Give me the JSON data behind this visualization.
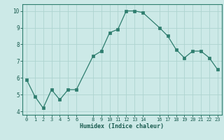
{
  "x": [
    0,
    1,
    2,
    3,
    4,
    5,
    6,
    8,
    9,
    10,
    11,
    12,
    13,
    14,
    16,
    17,
    18,
    19,
    20,
    21,
    22,
    23
  ],
  "y": [
    5.9,
    4.9,
    4.2,
    5.3,
    4.7,
    5.3,
    5.3,
    7.3,
    7.6,
    8.7,
    8.9,
    10.0,
    10.0,
    9.9,
    9.0,
    8.5,
    7.7,
    7.2,
    7.6,
    7.6,
    7.2,
    6.5
  ],
  "xticks": [
    0,
    1,
    2,
    3,
    4,
    5,
    6,
    8,
    9,
    10,
    11,
    12,
    13,
    14,
    16,
    17,
    18,
    19,
    20,
    21,
    22,
    23
  ],
  "yticks": [
    4,
    5,
    6,
    7,
    8,
    9,
    10
  ],
  "ylim": [
    3.8,
    10.4
  ],
  "xlim": [
    -0.5,
    23.5
  ],
  "xlabel": "Humidex (Indice chaleur)",
  "line_color": "#2e7d6e",
  "marker_color": "#2e7d6e",
  "bg_color": "#cce9e7",
  "grid_color": "#aed4d0",
  "axis_color": "#2e7d6e",
  "tick_color": "#1a5c50",
  "label_color": "#1a5c50",
  "font_family": "monospace"
}
